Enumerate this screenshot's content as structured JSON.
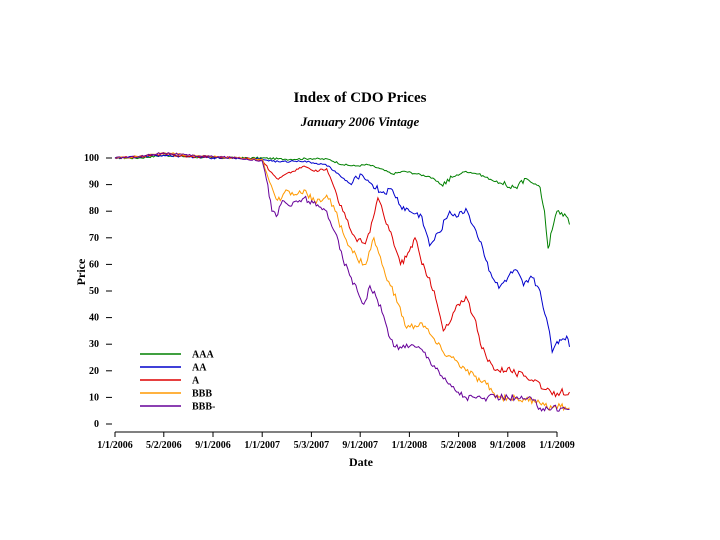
{
  "chart_data": {
    "type": "line",
    "title": "Index of CDO Prices",
    "subtitle": "January 2006 Vintage",
    "xlabel": "Date",
    "ylabel": "Price",
    "ylim": [
      0,
      100
    ],
    "y_ticks": [
      "0",
      "10",
      "20",
      "30",
      "40",
      "50",
      "60",
      "70",
      "80",
      "90",
      "100"
    ],
    "x_ticks": [
      "1/1/2006",
      "5/2/2006",
      "9/1/2006",
      "1/1/2007",
      "5/3/2007",
      "9/1/2007",
      "1/1/2008",
      "5/2/2008",
      "9/1/2008",
      "1/1/2009"
    ],
    "x_tick_dates": [
      "2006-01-01",
      "2006-05-02",
      "2006-09-01",
      "2007-01-01",
      "2007-05-03",
      "2007-09-01",
      "2008-01-01",
      "2008-05-02",
      "2008-09-01",
      "2009-01-01"
    ],
    "legend_position": "bottom-left",
    "grid": false,
    "series": [
      {
        "name": "AAA",
        "color": "#008000",
        "points": [
          [
            "2006-01-01",
            100
          ],
          [
            "2006-03-01",
            100
          ],
          [
            "2006-05-01",
            101
          ],
          [
            "2006-07-01",
            100.5
          ],
          [
            "2006-09-01",
            100
          ],
          [
            "2006-11-01",
            100
          ],
          [
            "2007-01-01",
            100
          ],
          [
            "2007-03-01",
            99.5
          ],
          [
            "2007-05-01",
            99.8
          ],
          [
            "2007-06-15",
            99.5
          ],
          [
            "2007-07-20",
            97.5
          ],
          [
            "2007-08-20",
            97
          ],
          [
            "2007-09-20",
            97.5
          ],
          [
            "2007-10-20",
            96
          ],
          [
            "2007-11-20",
            94
          ],
          [
            "2007-12-20",
            95
          ],
          [
            "2008-01-20",
            94
          ],
          [
            "2008-02-20",
            93
          ],
          [
            "2008-03-20",
            90
          ],
          [
            "2008-04-20",
            93
          ],
          [
            "2008-05-20",
            95
          ],
          [
            "2008-06-20",
            94
          ],
          [
            "2008-07-20",
            92
          ],
          [
            "2008-08-20",
            90
          ],
          [
            "2008-09-20",
            89
          ],
          [
            "2008-10-20",
            92
          ],
          [
            "2008-11-20",
            89
          ],
          [
            "2008-12-01",
            80
          ],
          [
            "2008-12-10",
            66
          ],
          [
            "2008-12-20",
            73
          ],
          [
            "2009-01-01",
            80
          ],
          [
            "2009-01-20",
            79
          ],
          [
            "2009-02-01",
            75
          ]
        ]
      },
      {
        "name": "AA",
        "color": "#0000cc",
        "points": [
          [
            "2006-01-01",
            100
          ],
          [
            "2006-03-01",
            100.5
          ],
          [
            "2006-05-01",
            101
          ],
          [
            "2006-07-01",
            100.5
          ],
          [
            "2006-09-01",
            100
          ],
          [
            "2006-11-01",
            100
          ],
          [
            "2007-01-01",
            99.5
          ],
          [
            "2007-02-15",
            98.5
          ],
          [
            "2007-04-01",
            99
          ],
          [
            "2007-05-15",
            98
          ],
          [
            "2007-06-15",
            97
          ],
          [
            "2007-07-15",
            93
          ],
          [
            "2007-08-10",
            90
          ],
          [
            "2007-09-01",
            94
          ],
          [
            "2007-10-01",
            90
          ],
          [
            "2007-10-25",
            87
          ],
          [
            "2007-11-20",
            88
          ],
          [
            "2007-12-10",
            82
          ],
          [
            "2008-01-01",
            80
          ],
          [
            "2008-02-01",
            78
          ],
          [
            "2008-02-20",
            67
          ],
          [
            "2008-03-15",
            72
          ],
          [
            "2008-04-10",
            80
          ],
          [
            "2008-05-01",
            78
          ],
          [
            "2008-05-20",
            81
          ],
          [
            "2008-06-10",
            74
          ],
          [
            "2008-07-01",
            66
          ],
          [
            "2008-07-20",
            57
          ],
          [
            "2008-08-10",
            51
          ],
          [
            "2008-09-01",
            55
          ],
          [
            "2008-09-20",
            58
          ],
          [
            "2008-10-10",
            52
          ],
          [
            "2008-11-01",
            55
          ],
          [
            "2008-11-20",
            50
          ],
          [
            "2008-12-10",
            37
          ],
          [
            "2008-12-20",
            27
          ],
          [
            "2009-01-01",
            31
          ],
          [
            "2009-01-15",
            32
          ],
          [
            "2009-01-25",
            33
          ],
          [
            "2009-02-01",
            29
          ]
        ]
      },
      {
        "name": "A",
        "color": "#dd0000",
        "points": [
          [
            "2006-01-01",
            100
          ],
          [
            "2006-03-01",
            100.5
          ],
          [
            "2006-05-01",
            101.5
          ],
          [
            "2006-07-01",
            100.5
          ],
          [
            "2006-09-01",
            100.5
          ],
          [
            "2006-11-01",
            100
          ],
          [
            "2007-01-01",
            99.5
          ],
          [
            "2007-01-20",
            95
          ],
          [
            "2007-02-10",
            92
          ],
          [
            "2007-03-01",
            94
          ],
          [
            "2007-03-20",
            95
          ],
          [
            "2007-04-15",
            97
          ],
          [
            "2007-05-10",
            95
          ],
          [
            "2007-06-10",
            96
          ],
          [
            "2007-07-01",
            88
          ],
          [
            "2007-07-20",
            80
          ],
          [
            "2007-08-05",
            74
          ],
          [
            "2007-08-20",
            70
          ],
          [
            "2007-09-10",
            68
          ],
          [
            "2007-09-25",
            72
          ],
          [
            "2007-10-15",
            85
          ],
          [
            "2007-11-01",
            77
          ],
          [
            "2007-11-20",
            70
          ],
          [
            "2007-12-10",
            60
          ],
          [
            "2008-01-01",
            65
          ],
          [
            "2008-01-15",
            70
          ],
          [
            "2008-02-01",
            60
          ],
          [
            "2008-02-20",
            55
          ],
          [
            "2008-03-10",
            45
          ],
          [
            "2008-03-25",
            35
          ],
          [
            "2008-04-10",
            38
          ],
          [
            "2008-05-01",
            45
          ],
          [
            "2008-05-20",
            48
          ],
          [
            "2008-06-10",
            40
          ],
          [
            "2008-06-25",
            30
          ],
          [
            "2008-07-10",
            25
          ],
          [
            "2008-07-25",
            22
          ],
          [
            "2008-08-10",
            20
          ],
          [
            "2008-09-01",
            21
          ],
          [
            "2008-09-20",
            19
          ],
          [
            "2008-10-15",
            18
          ],
          [
            "2008-11-15",
            16
          ],
          [
            "2008-12-01",
            13
          ],
          [
            "2008-12-20",
            11
          ],
          [
            "2009-01-10",
            12
          ],
          [
            "2009-02-01",
            12
          ]
        ]
      },
      {
        "name": "BBB",
        "color": "#ff9900",
        "points": [
          [
            "2006-01-01",
            100
          ],
          [
            "2006-03-01",
            100.5
          ],
          [
            "2006-05-01",
            102
          ],
          [
            "2006-07-01",
            101
          ],
          [
            "2006-09-01",
            100.5
          ],
          [
            "2006-11-01",
            100
          ],
          [
            "2007-01-01",
            99.5
          ],
          [
            "2007-01-15",
            93
          ],
          [
            "2007-02-01",
            86
          ],
          [
            "2007-02-15",
            84
          ],
          [
            "2007-03-01",
            88
          ],
          [
            "2007-03-20",
            86
          ],
          [
            "2007-04-15",
            88
          ],
          [
            "2007-05-15",
            83
          ],
          [
            "2007-06-10",
            86
          ],
          [
            "2007-07-01",
            80
          ],
          [
            "2007-07-20",
            72
          ],
          [
            "2007-08-10",
            66
          ],
          [
            "2007-08-25",
            62
          ],
          [
            "2007-09-15",
            60
          ],
          [
            "2007-10-05",
            70
          ],
          [
            "2007-10-25",
            60
          ],
          [
            "2007-11-15",
            52
          ],
          [
            "2007-12-05",
            45
          ],
          [
            "2007-12-25",
            36
          ],
          [
            "2008-01-15",
            37
          ],
          [
            "2008-02-01",
            38
          ],
          [
            "2008-02-20",
            34
          ],
          [
            "2008-03-10",
            30
          ],
          [
            "2008-03-25",
            27
          ],
          [
            "2008-04-15",
            25
          ],
          [
            "2008-05-01",
            23
          ],
          [
            "2008-05-20",
            20
          ],
          [
            "2008-06-10",
            18
          ],
          [
            "2008-06-25",
            16
          ],
          [
            "2008-07-10",
            15
          ],
          [
            "2008-07-25",
            12
          ],
          [
            "2008-08-10",
            10
          ],
          [
            "2008-09-01",
            10
          ],
          [
            "2008-09-20",
            9.5
          ],
          [
            "2008-10-15",
            9
          ],
          [
            "2008-11-15",
            9
          ],
          [
            "2008-12-01",
            7
          ],
          [
            "2008-12-20",
            6
          ],
          [
            "2009-01-10",
            6.5
          ],
          [
            "2009-02-01",
            6
          ]
        ]
      },
      {
        "name": "BBB-",
        "color": "#660099",
        "points": [
          [
            "2006-01-01",
            100
          ],
          [
            "2006-03-01",
            100.5
          ],
          [
            "2006-05-01",
            102
          ],
          [
            "2006-07-01",
            101
          ],
          [
            "2006-09-01",
            100.5
          ],
          [
            "2006-11-01",
            100
          ],
          [
            "2007-01-01",
            99
          ],
          [
            "2007-01-15",
            90
          ],
          [
            "2007-01-25",
            80
          ],
          [
            "2007-02-05",
            78
          ],
          [
            "2007-02-20",
            84
          ],
          [
            "2007-03-15",
            82
          ],
          [
            "2007-04-15",
            85
          ],
          [
            "2007-05-15",
            82
          ],
          [
            "2007-06-10",
            80
          ],
          [
            "2007-07-01",
            72
          ],
          [
            "2007-07-20",
            62
          ],
          [
            "2007-08-10",
            55
          ],
          [
            "2007-08-25",
            50
          ],
          [
            "2007-09-10",
            45
          ],
          [
            "2007-09-25",
            52
          ],
          [
            "2007-10-10",
            48
          ],
          [
            "2007-10-25",
            42
          ],
          [
            "2007-11-15",
            32
          ],
          [
            "2007-12-05",
            28
          ],
          [
            "2007-12-25",
            30
          ],
          [
            "2008-01-15",
            29
          ],
          [
            "2008-02-01",
            28
          ],
          [
            "2008-02-20",
            24
          ],
          [
            "2008-03-10",
            21
          ],
          [
            "2008-03-25",
            17
          ],
          [
            "2008-04-15",
            14
          ],
          [
            "2008-05-01",
            12
          ],
          [
            "2008-05-20",
            10
          ],
          [
            "2008-06-10",
            10
          ],
          [
            "2008-07-01",
            9.5
          ],
          [
            "2008-08-01",
            10
          ],
          [
            "2008-09-01",
            10
          ],
          [
            "2008-10-01",
            9.5
          ],
          [
            "2008-11-01",
            9
          ],
          [
            "2008-11-20",
            6
          ],
          [
            "2008-12-20",
            6
          ],
          [
            "2009-01-10",
            6
          ],
          [
            "2009-02-01",
            5.5
          ]
        ]
      }
    ]
  }
}
